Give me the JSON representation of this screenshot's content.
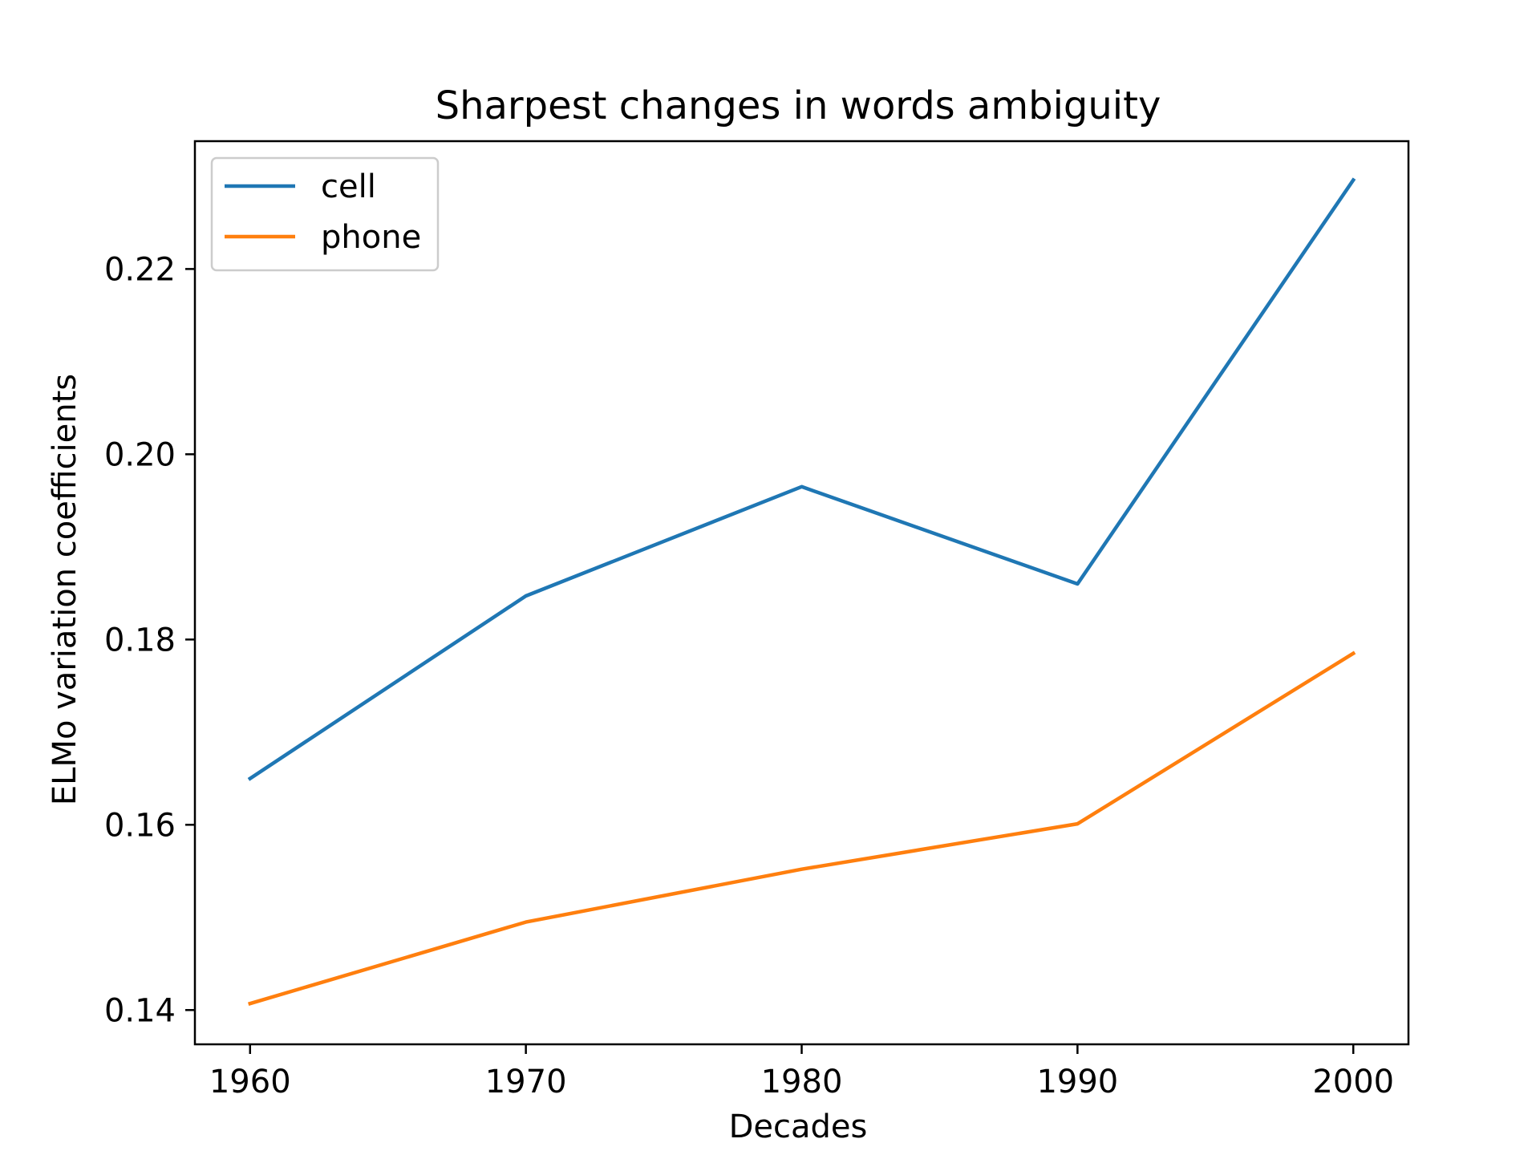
{
  "chart_data": {
    "type": "line",
    "title": "Sharpest changes in words ambiguity",
    "xlabel": "Decades",
    "ylabel": "ELMo variation coefficients",
    "x": [
      1960,
      1970,
      1980,
      1990,
      2000
    ],
    "x_ticks": [
      "1960",
      "1970",
      "1980",
      "1990",
      "2000"
    ],
    "y_ticks": [
      "0.14",
      "0.16",
      "0.18",
      "0.20",
      "0.22"
    ],
    "xlim": [
      1958,
      2002
    ],
    "ylim": [
      0.1363,
      0.2338
    ],
    "grid": false,
    "legend_position": "upper-left",
    "series": [
      {
        "name": "cell",
        "color": "#1f77b4",
        "values": [
          0.165,
          0.1847,
          0.1965,
          0.186,
          0.2296
        ]
      },
      {
        "name": "phone",
        "color": "#ff7f0e",
        "values": [
          0.1407,
          0.1495,
          0.1552,
          0.1601,
          0.1785
        ]
      }
    ]
  }
}
